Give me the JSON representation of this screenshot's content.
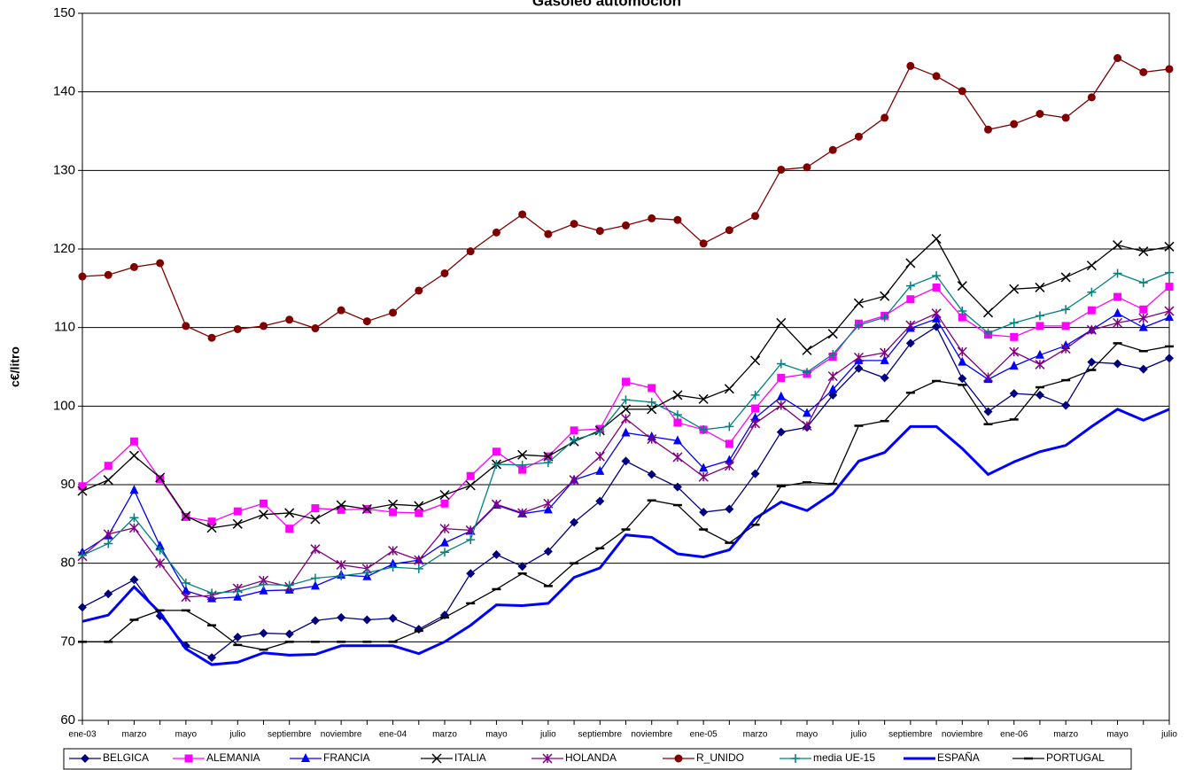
{
  "chart_data": {
    "type": "line",
    "title": "Gasóleo automoción",
    "y_label": "c€/litro",
    "categories": [
      "ene-03",
      null,
      "marzo",
      null,
      "mayo",
      null,
      "julio",
      null,
      "septiembre",
      null,
      "noviembre",
      null,
      "ene-04",
      null,
      "marzo",
      null,
      "mayo",
      null,
      "julio",
      null,
      "septiembre",
      null,
      "noviembre",
      null,
      "ene-05",
      null,
      "marzo",
      null,
      "mayo",
      null,
      "julio",
      null,
      "septiembre",
      null,
      "noviembre",
      null,
      "ene-06",
      null,
      "marzo",
      null,
      "mayo",
      null,
      "julio"
    ],
    "ylim": [
      60,
      150
    ],
    "yticks": [
      60,
      70,
      80,
      90,
      100,
      110,
      120,
      130,
      140,
      150
    ],
    "grid": true,
    "legend": "bottom",
    "series": [
      {
        "name": "BELGICA",
        "color": "#000080",
        "marker": "diamond",
        "values": [
          74.4,
          76.1,
          77.9,
          73.3,
          69.5,
          68,
          70.6,
          71.1,
          71,
          72.7,
          73.1,
          72.8,
          73,
          71.6,
          73.4,
          78.7,
          81.1,
          79.6,
          81.5,
          85.2,
          87.9,
          93,
          91.3,
          89.7,
          86.5,
          86.9,
          91.4,
          96.7,
          97.3,
          101.4,
          104.8,
          103.6,
          108,
          110.1,
          103.5,
          99.3,
          101.6,
          101.4,
          100.1,
          105.6,
          105.4,
          104.7,
          106.1
        ]
      },
      {
        "name": "ALEMANIA",
        "color": "#ff00ff",
        "marker": "square",
        "values": [
          89.8,
          92.4,
          95.5,
          90.7,
          85.9,
          85.3,
          86.6,
          87.6,
          84.4,
          87,
          86.8,
          86.9,
          86.5,
          86.4,
          87.6,
          91.1,
          94.2,
          91.9,
          93.6,
          96.9,
          97.1,
          103.1,
          102.3,
          97.9,
          97,
          95.2,
          99.7,
          103.6,
          104.1,
          106.3,
          110.5,
          111.5,
          113.6,
          115.1,
          111.3,
          109.1,
          108.8,
          110.2,
          110.2,
          112.2,
          113.9,
          112.3,
          115.2
        ]
      },
      {
        "name": "FRANCIA",
        "color": "#0000ff",
        "marker": "triangle",
        "values": [
          81.4,
          83.5,
          89.3,
          82.2,
          76.5,
          75.5,
          75.7,
          76.5,
          76.6,
          77.1,
          78.5,
          78.3,
          79.9,
          80.4,
          82.6,
          84.1,
          87.4,
          86.3,
          86.8,
          90.6,
          91.7,
          96.6,
          96.1,
          95.6,
          92.1,
          93.1,
          98.5,
          101.2,
          99.1,
          102.1,
          105.8,
          105.8,
          109.9,
          111.1,
          105.6,
          103.4,
          105.1,
          106.5,
          107.7,
          109.7,
          111.8,
          110,
          111.3
        ]
      },
      {
        "name": "ITALIA",
        "color": "#000000",
        "marker": "x",
        "values": [
          89.2,
          90.6,
          93.7,
          90.9,
          86,
          84.5,
          85,
          86.2,
          86.4,
          85.6,
          87.4,
          86.9,
          87.5,
          87.3,
          88.7,
          89.9,
          92.6,
          93.8,
          93.6,
          95.5,
          96.9,
          99.6,
          99.6,
          101.4,
          100.9,
          102.2,
          105.8,
          110.6,
          107.1,
          109.2,
          113.1,
          114,
          118.2,
          121.3,
          115.3,
          111.9,
          114.9,
          115.1,
          116.4,
          117.9,
          120.5,
          119.7,
          120.3
        ]
      },
      {
        "name": "HOLANDA",
        "color": "#800080",
        "marker": "star",
        "values": [
          80.9,
          83.7,
          84.5,
          80,
          75.7,
          75.9,
          76.8,
          77.8,
          77,
          81.8,
          79.8,
          79.3,
          81.6,
          80.4,
          84.4,
          84.2,
          87.5,
          86.4,
          87.6,
          90.6,
          93.6,
          98.4,
          95.8,
          93.5,
          91,
          92.4,
          97.8,
          100.1,
          97.5,
          103.8,
          106.2,
          106.8,
          110.3,
          111.8,
          106.9,
          103.7,
          106.9,
          105.3,
          107.3,
          109.7,
          110.6,
          111.2,
          112.1
        ]
      },
      {
        "name": "R_UNIDO",
        "color": "#800000",
        "marker": "circle",
        "values": [
          116.5,
          116.7,
          117.7,
          118.2,
          110.2,
          108.7,
          109.8,
          110.2,
          111,
          109.9,
          112.2,
          110.8,
          111.9,
          114.7,
          116.9,
          119.7,
          122.1,
          124.4,
          121.9,
          123.2,
          122.3,
          123,
          123.9,
          123.7,
          120.7,
          122.4,
          124.2,
          130.1,
          130.4,
          132.6,
          134.3,
          136.7,
          143.3,
          142,
          140.1,
          135.2,
          135.9,
          137.2,
          136.7,
          139.3,
          144.3,
          142.5,
          142.9
        ]
      },
      {
        "name": "media UE-15",
        "color": "#008080",
        "marker": "plus",
        "values": [
          81,
          82.5,
          85.8,
          81.7,
          77.5,
          76.2,
          76.4,
          77.3,
          77.2,
          78.1,
          78.4,
          78.8,
          79.5,
          79.3,
          81.4,
          83,
          92.6,
          92.5,
          92.8,
          95.7,
          96.7,
          100.8,
          100.5,
          98.9,
          97,
          97.4,
          101.4,
          105.4,
          104.3,
          106.6,
          110.3,
          111.3,
          115.3,
          116.6,
          112.1,
          109.3,
          110.6,
          111.5,
          112.3,
          114.5,
          116.9,
          115.7,
          117
        ]
      },
      {
        "name": "ESPAÑA",
        "color": "#0000ff",
        "marker": "none",
        "values": [
          72.6,
          73.4,
          77,
          73.7,
          69.1,
          67.1,
          67.4,
          68.6,
          68.3,
          68.4,
          69.5,
          69.5,
          69.5,
          68.5,
          70,
          72.1,
          74.7,
          74.6,
          74.9,
          78.2,
          79.4,
          83.6,
          83.3,
          81.2,
          80.8,
          81.7,
          85.7,
          87.8,
          86.7,
          88.9,
          93,
          94.1,
          97.4,
          97.4,
          94.6,
          91.3,
          92.9,
          94.2,
          95,
          97.4,
          99.6,
          98.2,
          99.6
        ]
      },
      {
        "name": "PORTUGAL",
        "color": "#000000",
        "marker": "dash",
        "values": [
          70,
          70,
          72.8,
          74,
          74,
          72.1,
          69.6,
          69,
          70,
          70,
          70,
          70,
          70,
          71.4,
          73.1,
          74.9,
          76.7,
          78.7,
          77.1,
          80,
          81.9,
          84.3,
          88,
          87.4,
          84.3,
          82.6,
          84.9,
          89.8,
          90.3,
          90.1,
          97.5,
          98.1,
          101.7,
          103.2,
          102.7,
          97.7,
          98.3,
          102.4,
          103.3,
          104.6,
          108,
          107,
          107.6
        ]
      }
    ]
  }
}
